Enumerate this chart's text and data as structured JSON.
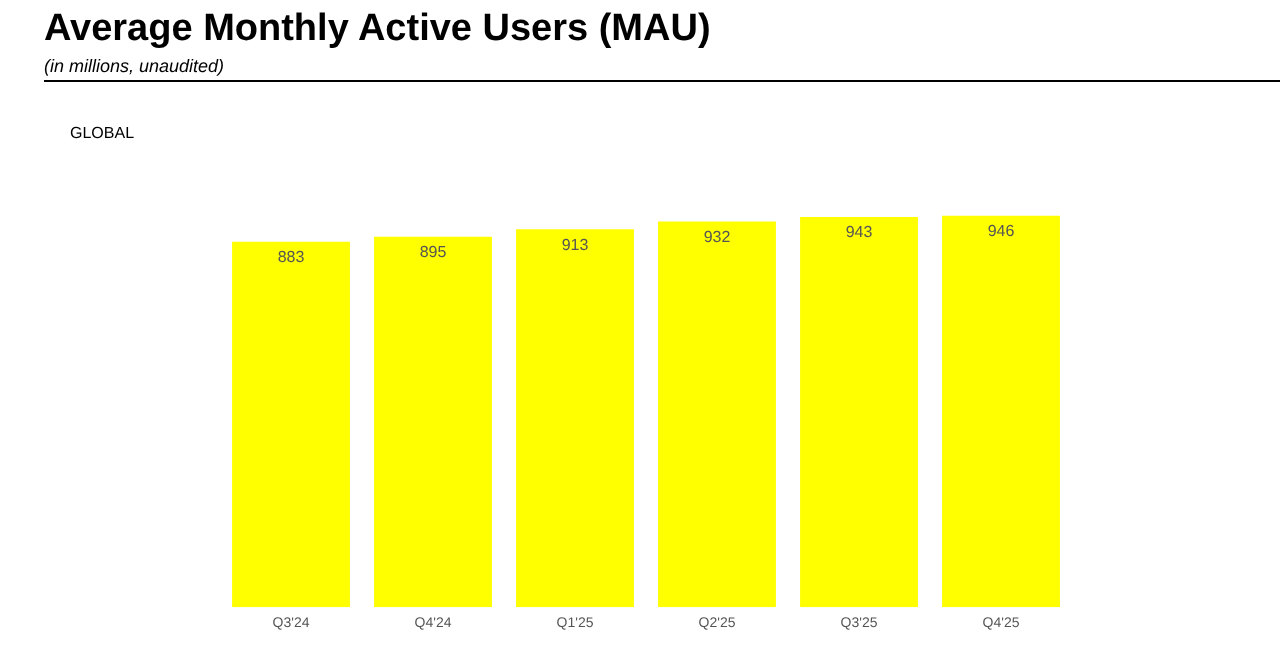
{
  "chart_data": {
    "type": "bar",
    "title": "Average Monthly Active Users (MAU)",
    "subtitle": "(in millions, unaudited)",
    "annotations": [
      "GLOBAL"
    ],
    "categories": [
      "Q3'24",
      "Q4'24",
      "Q1'25",
      "Q2'25",
      "Q3'25",
      "Q4'25"
    ],
    "values": [
      883,
      895,
      913,
      932,
      943,
      946
    ],
    "color": "#ffff00",
    "ylim": [
      0,
      950
    ],
    "data_labels": true,
    "grid": false,
    "legend": false,
    "tick_labels": "x"
  }
}
